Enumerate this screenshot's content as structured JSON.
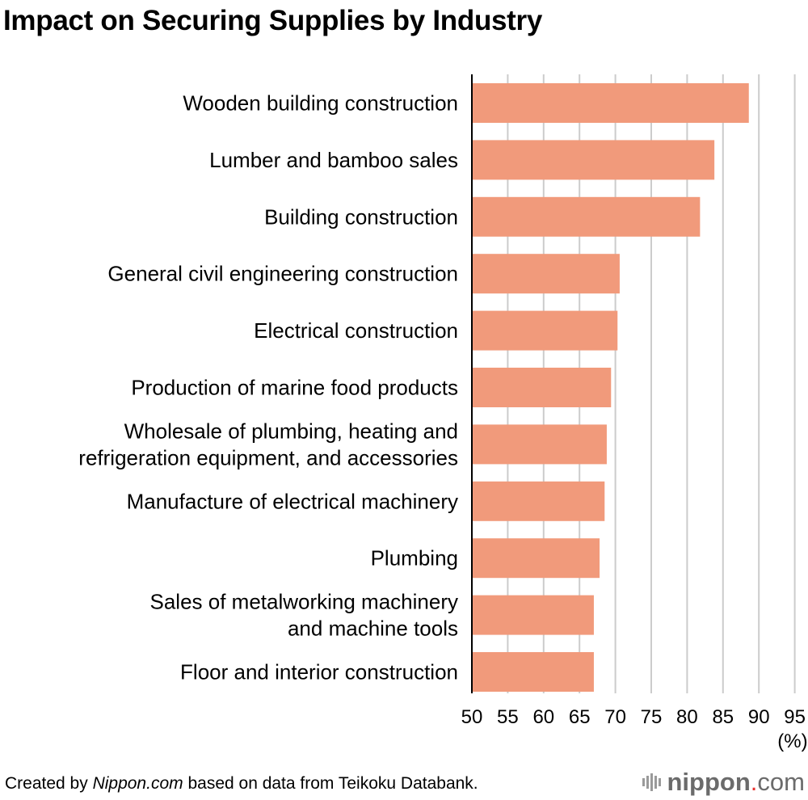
{
  "title": "Impact on Securing Supplies by Industry",
  "footer": {
    "prefix": "Created by ",
    "source_site": "Nippon.com",
    "suffix": " based on data from Teikoku Databank."
  },
  "logo": {
    "name": "nippon",
    "dot": ".",
    "tld": "com"
  },
  "colors": {
    "bar": "#f19a7b",
    "grid": "#cccccc",
    "axis": "#000000"
  },
  "chart_data": {
    "type": "bar",
    "orientation": "horizontal",
    "title": "Impact on Securing Supplies by Industry",
    "xlabel": "",
    "unit_label": "(%)",
    "xlim": [
      50,
      95
    ],
    "x_ticks": [
      50,
      55,
      60,
      65,
      70,
      75,
      80,
      85,
      90,
      95
    ],
    "grid": true,
    "categories": [
      [
        "Wooden building construction"
      ],
      [
        "Lumber and bamboo sales"
      ],
      [
        "Building construction"
      ],
      [
        "General civil engineering construction"
      ],
      [
        "Electrical construction"
      ],
      [
        "Production of marine food products"
      ],
      [
        "Wholesale of plumbing, heating and",
        "refrigeration equipment, and accessories"
      ],
      [
        "Manufacture of electrical machinery"
      ],
      [
        "Plumbing"
      ],
      [
        "Sales of metalworking machinery",
        "and machine tools"
      ],
      [
        "Floor and interior construction"
      ]
    ],
    "values": [
      88.6,
      83.8,
      81.8,
      70.6,
      70.3,
      69.4,
      68.8,
      68.5,
      67.8,
      67.0,
      67.0
    ]
  }
}
